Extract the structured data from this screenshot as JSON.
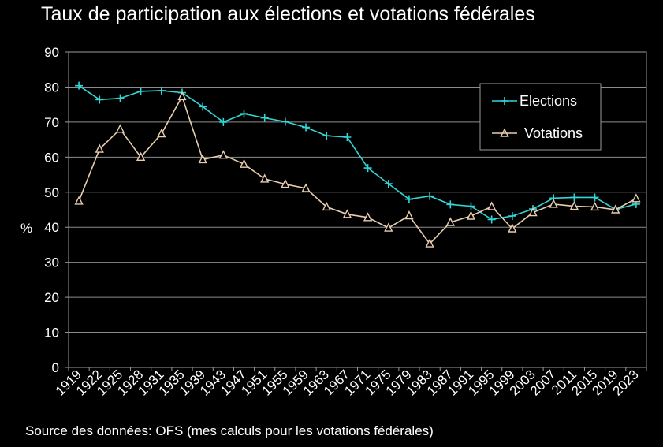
{
  "chart_data": {
    "type": "line",
    "title": "Taux de participation aux élections et votations fédérales",
    "ylabel": "%",
    "xlabel": "",
    "ylim": [
      0,
      90
    ],
    "yticks": [
      0,
      10,
      20,
      30,
      40,
      50,
      60,
      70,
      80,
      90
    ],
    "categories": [
      "1919",
      "1922",
      "1925",
      "1928",
      "1931",
      "1935",
      "1939",
      "1943",
      "1947",
      "1951",
      "1955",
      "1959",
      "1963",
      "1967",
      "1971",
      "1975",
      "1979",
      "1983",
      "1987",
      "1991",
      "1995",
      "1999",
      "2003",
      "2007",
      "2011",
      "2015",
      "2019",
      "2023"
    ],
    "series": [
      {
        "name": "Elections",
        "color": "#33d6d6",
        "values": [
          80.4,
          76.4,
          76.8,
          78.8,
          79.0,
          78.4,
          74.4,
          70.0,
          72.4,
          71.2,
          70.1,
          68.5,
          66.1,
          65.7,
          56.9,
          52.4,
          48.0,
          48.9,
          46.5,
          46.0,
          42.2,
          43.2,
          45.2,
          48.3,
          48.5,
          48.5,
          45.1,
          46.6
        ]
      },
      {
        "name": "Votations",
        "color": "#e8ceb0",
        "values": [
          47.5,
          62.3,
          68.0,
          60.0,
          66.7,
          77.3,
          59.3,
          60.6,
          58.0,
          53.8,
          52.3,
          51.1,
          45.8,
          43.7,
          42.8,
          39.8,
          43.3,
          35.3,
          41.4,
          43.2,
          45.9,
          39.6,
          44.2,
          46.6,
          46.0,
          45.8,
          45.0,
          48.2
        ]
      }
    ],
    "grid": true,
    "legend": "top-right"
  },
  "source": "Source des données: OFS (mes calculs pour les votations fédérales)"
}
